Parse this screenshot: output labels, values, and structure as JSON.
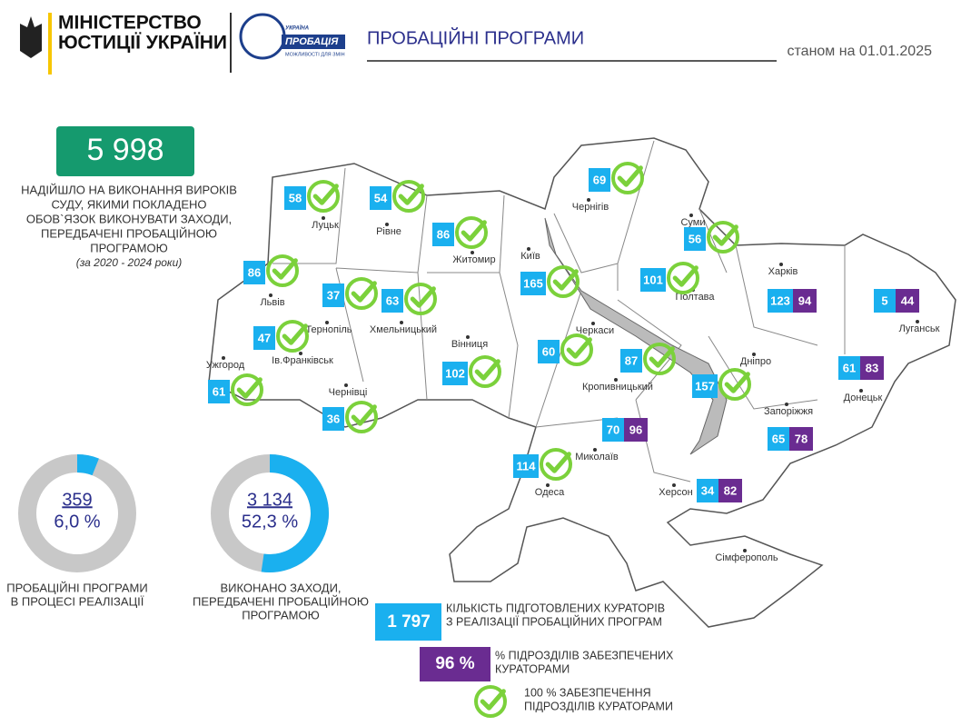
{
  "header": {
    "ministry": [
      "МІНІСТЕРСТВО",
      "ЮСТИЦІЇ УКРАЇНИ"
    ],
    "probation_logo": {
      "top": "УКРАЇНА",
      "name": "ПРОБАЦІЯ",
      "slogan": "МОЖЛИВОСТІ ДЛЯ ЗМІН"
    },
    "title": "ПРОБАЦІЙНІ ПРОГРАМИ",
    "date": "станом на 01.01.2025"
  },
  "total": {
    "value": "5 998",
    "description": [
      "НАДІЙШЛО НА ВИКОНАННЯ ВИРОКІВ",
      "СУДУ, ЯКИМИ ПОКЛАДЕНО",
      "ОБОВ`ЯЗОК ВИКОНУВАТИ ЗАХОДИ,",
      "ПЕРЕДБАЧЕНІ ПРОБАЦІЙНОЮ",
      "ПРОГРАМОЮ"
    ],
    "period": "(за 2020 - 2024 роки)"
  },
  "donuts": [
    {
      "count": "359",
      "percent": 6.0,
      "percent_label": "6,0 %",
      "caption": [
        "ПРОБАЦІЙНІ ПРОГРАМИ",
        "В ПРОЦЕСІ РЕАЛІЗАЦІЇ"
      ]
    },
    {
      "count": "3 134",
      "percent": 52.3,
      "percent_label": "52,3 %",
      "caption": [
        "ВИКОНАНО ЗАХОДИ,",
        "ПЕРЕДБАЧЕНІ ПРОБАЦІЙНОЮ",
        "ПРОГРАМОЮ"
      ]
    }
  ],
  "regions": [
    {
      "city": "Луцьк",
      "count": 58
    },
    {
      "city": "Рівне",
      "count": 54
    },
    {
      "city": "Житомир",
      "count": 86
    },
    {
      "city": "Чернігів",
      "count": 69
    },
    {
      "city": "Київ",
      "count": 165
    },
    {
      "city": "Суми",
      "count": 56
    },
    {
      "city": "Харків",
      "count": 123,
      "coverage": 94
    },
    {
      "city": "Луганськ",
      "count": 5,
      "coverage": 44
    },
    {
      "city": "Львів",
      "count": 86
    },
    {
      "city": "Тернопіль",
      "count": 37
    },
    {
      "city": "Хмельницький",
      "count": 63
    },
    {
      "city": "Полтава",
      "count": 101
    },
    {
      "city": "Вінниця",
      "count": 102
    },
    {
      "city": "Черкаси",
      "count": 60
    },
    {
      "city": "Кропивницький",
      "count": 87
    },
    {
      "city": "Дніпро",
      "count": 157
    },
    {
      "city": "Донецьк",
      "count": 61,
      "coverage": 83
    },
    {
      "city": "Ів.Франківськ",
      "count": 47
    },
    {
      "city": "Ужгород",
      "count": 61
    },
    {
      "city": "Чернівці",
      "count": 36
    },
    {
      "city": "Запоріжжя",
      "count": 65,
      "coverage": 78
    },
    {
      "city": "Миколаїв",
      "count": 70,
      "coverage": 96
    },
    {
      "city": "Одеса",
      "count": 114
    },
    {
      "city": "Херсон",
      "count": 34,
      "coverage": 82
    },
    {
      "city": "Сімферополь"
    }
  ],
  "legend": [
    {
      "value": "1 797",
      "text": [
        "КІЛЬКІСТЬ ПІДГОТОВЛЕНИХ КУРАТОРІВ",
        "З РЕАЛІЗАЦІЇ ПРОБАЦІЙНИХ ПРОГРАМ"
      ]
    },
    {
      "value": "96 %",
      "text": [
        "% ПІДРОЗДІЛІВ ЗАБЕЗПЕЧЕНИХ",
        "КУРАТОРАМИ"
      ]
    },
    {
      "text": [
        "100 % ЗАБЕЗПЕЧЕННЯ",
        "ПІДРОЗДІЛІВ КУРАТОРАМИ"
      ]
    }
  ]
}
